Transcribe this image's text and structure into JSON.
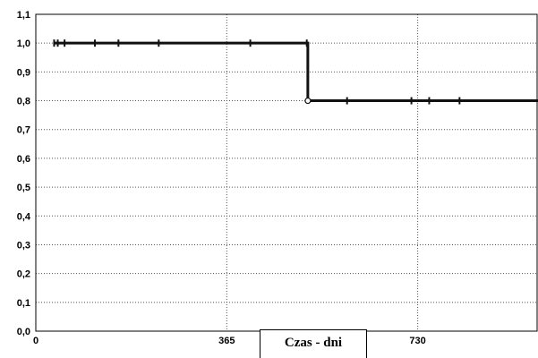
{
  "chart_data": {
    "type": "line",
    "step": true,
    "xlabel": "Czas - dni",
    "ylabel": "",
    "title": "",
    "x_ticks": [
      0,
      365,
      730
    ],
    "x_tick_labels": [
      "0",
      "365",
      "730"
    ],
    "y_ticks": [
      0,
      0.1,
      0.2,
      0.3,
      0.4,
      0.5,
      0.6,
      0.7,
      0.8,
      0.9,
      1.0,
      1.1
    ],
    "y_tick_labels": [
      "0,0",
      "0,1",
      "0,2",
      "0,3",
      "0,4",
      "0,5",
      "0,6",
      "0,7",
      "0,8",
      "0,9",
      "1,0",
      "1,1"
    ],
    "xlim": [
      0,
      960
    ],
    "ylim": [
      0,
      1.1
    ],
    "grid": true,
    "series": [
      {
        "color": "#111111",
        "steps": [
          [
            35,
            1.0
          ],
          [
            520,
            1.0
          ],
          [
            520,
            0.8
          ],
          [
            960,
            0.8
          ]
        ],
        "censored": [
          {
            "x": 35,
            "y": 1.0
          },
          {
            "x": 42,
            "y": 1.0
          },
          {
            "x": 55,
            "y": 1.0
          },
          {
            "x": 113,
            "y": 1.0
          },
          {
            "x": 158,
            "y": 1.0
          },
          {
            "x": 235,
            "y": 1.0
          },
          {
            "x": 410,
            "y": 1.0
          },
          {
            "x": 518,
            "y": 1.0
          },
          {
            "x": 595,
            "y": 0.8
          },
          {
            "x": 718,
            "y": 0.8
          },
          {
            "x": 752,
            "y": 0.8
          },
          {
            "x": 810,
            "y": 0.8
          }
        ],
        "events": [
          {
            "x": 520,
            "y": 0.8
          }
        ]
      }
    ]
  }
}
